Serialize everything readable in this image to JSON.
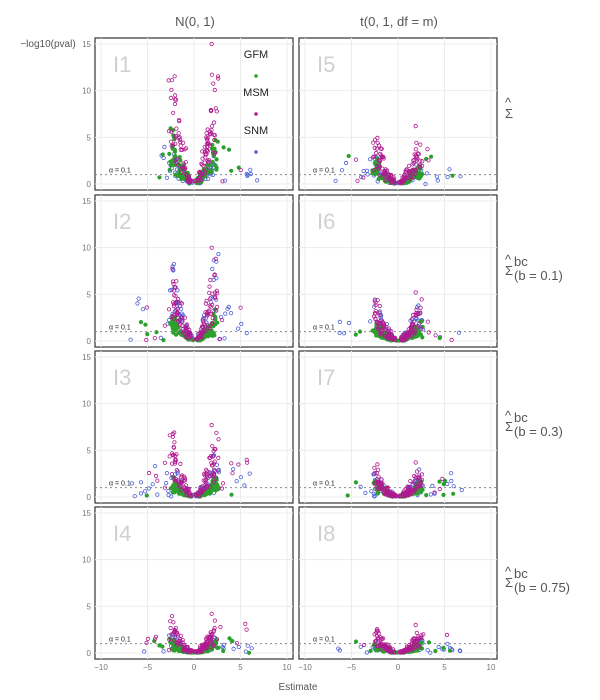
{
  "chart_data": {
    "type": "scatter",
    "title": "",
    "xlabel": "Estimate",
    "ylabel": "−log10(pval)",
    "xlim": [
      -10,
      10
    ],
    "ylim": [
      0,
      15
    ],
    "x_ticks": [
      "−10",
      "−5",
      "0",
      "5",
      "10"
    ],
    "y_ticks": [
      "0",
      "5",
      "10",
      "15"
    ],
    "columns": [
      "N(0, 1)",
      "t(0, 1, df = m)"
    ],
    "rows": [
      "Σ̂",
      "Σ̂bc(b = 0.1)",
      "Σ̂bc(b = 0.3)",
      "Σ̂bc(b = 0.75)"
    ],
    "row_labels": [
      {
        "base": "Σ",
        "sup": "",
        "suffix": ""
      },
      {
        "base": "Σ",
        "sup": "bc",
        "suffix": "(b = 0.1)"
      },
      {
        "base": "Σ",
        "sup": "bc",
        "suffix": "(b = 0.3)"
      },
      {
        "base": "Σ",
        "sup": "bc",
        "suffix": "(b = 0.75)"
      }
    ],
    "reference_line": {
      "y": 1,
      "label": "α = 0.1"
    },
    "series": [
      {
        "name": "GFM",
        "color": "#2ca02c"
      },
      {
        "name": "MSM",
        "color": "#b0198f"
      },
      {
        "name": "SNM",
        "color": "#4a5fd6"
      }
    ],
    "panels": [
      {
        "tag": "I1",
        "col": 0,
        "row": 0,
        "max": {
          "GFM": 6.5,
          "MSM": 15,
          "SNM": 4.5
        },
        "seed": 11
      },
      {
        "tag": "I5",
        "col": 1,
        "row": 0,
        "max": {
          "GFM": 3.0,
          "MSM": 6.2,
          "SNM": 3.3
        },
        "seed": 15
      },
      {
        "tag": "I2",
        "col": 0,
        "row": 1,
        "max": {
          "GFM": 3.5,
          "MSM": 10.0,
          "SNM": 10.2
        },
        "seed": 12
      },
      {
        "tag": "I6",
        "col": 1,
        "row": 1,
        "max": {
          "GFM": 2.5,
          "MSM": 5.2,
          "SNM": 5.0
        },
        "seed": 16
      },
      {
        "tag": "I3",
        "col": 0,
        "row": 2,
        "max": {
          "GFM": 2.3,
          "MSM": 7.7,
          "SNM": 5.0
        },
        "seed": 13
      },
      {
        "tag": "I7",
        "col": 1,
        "row": 2,
        "max": {
          "GFM": 2.0,
          "MSM": 3.7,
          "SNM": 3.4
        },
        "seed": 17
      },
      {
        "tag": "I4",
        "col": 0,
        "row": 3,
        "max": {
          "GFM": 1.6,
          "MSM": 4.2,
          "SNM": 2.3
        },
        "seed": 14
      },
      {
        "tag": "I8",
        "col": 1,
        "row": 3,
        "max": {
          "GFM": 1.3,
          "MSM": 3.0,
          "SNM": 1.6
        },
        "seed": 18
      }
    ],
    "legend": {
      "placement": "inside-top-right of I1",
      "items": [
        "GFM",
        "MSM",
        "SNM"
      ]
    }
  }
}
